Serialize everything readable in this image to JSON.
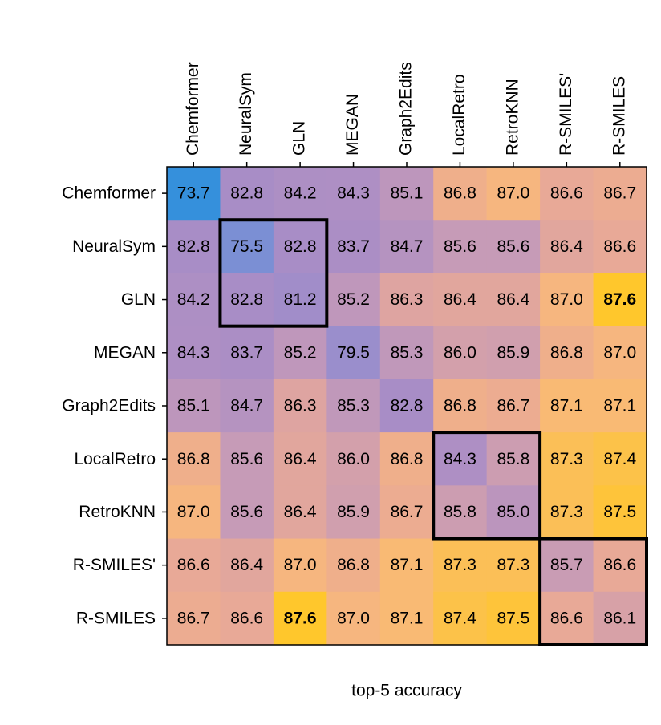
{
  "chart_data": {
    "type": "heatmap",
    "x_categories": [
      "Chemformer",
      "NeuralSym",
      "GLN",
      "MEGAN",
      "Graph2Edits",
      "LocalRetro",
      "RetroKNN",
      "R-SMILES'",
      "R-SMILES"
    ],
    "y_categories": [
      "Chemformer",
      "NeuralSym",
      "GLN",
      "MEGAN",
      "Graph2Edits",
      "LocalRetro",
      "RetroKNN",
      "R-SMILES'",
      "R-SMILES"
    ],
    "values": [
      [
        73.7,
        82.8,
        84.2,
        84.3,
        85.1,
        86.8,
        87.0,
        86.6,
        86.7
      ],
      [
        82.8,
        75.5,
        82.8,
        83.7,
        84.7,
        85.6,
        85.6,
        86.4,
        86.6
      ],
      [
        84.2,
        82.8,
        81.2,
        85.2,
        86.3,
        86.4,
        86.4,
        87.0,
        87.6
      ],
      [
        84.3,
        83.7,
        85.2,
        79.5,
        85.3,
        86.0,
        85.9,
        86.8,
        87.0
      ],
      [
        85.1,
        84.7,
        86.3,
        85.3,
        82.8,
        86.8,
        86.7,
        87.1,
        87.1
      ],
      [
        86.8,
        85.6,
        86.4,
        86.0,
        86.8,
        84.3,
        85.8,
        87.3,
        87.4
      ],
      [
        87.0,
        85.6,
        86.4,
        85.9,
        86.7,
        85.8,
        85.0,
        87.3,
        87.5
      ],
      [
        86.6,
        86.4,
        87.0,
        86.8,
        87.1,
        87.3,
        87.3,
        85.7,
        86.6
      ],
      [
        86.7,
        86.6,
        87.6,
        87.0,
        87.1,
        87.4,
        87.5,
        86.6,
        86.1
      ]
    ],
    "value_labels": [
      [
        "73.7",
        "82.8",
        "84.2",
        "84.3",
        "85.1",
        "86.8",
        "87.0",
        "86.6",
        "86.7"
      ],
      [
        "82.8",
        "75.5",
        "82.8",
        "83.7",
        "84.7",
        "85.6",
        "85.6",
        "86.4",
        "86.6"
      ],
      [
        "84.2",
        "82.8",
        "81.2",
        "85.2",
        "86.3",
        "86.4",
        "86.4",
        "87.0",
        "87.6"
      ],
      [
        "84.3",
        "83.7",
        "85.2",
        "79.5",
        "85.3",
        "86.0",
        "85.9",
        "86.8",
        "87.0"
      ],
      [
        "85.1",
        "84.7",
        "86.3",
        "85.3",
        "82.8",
        "86.8",
        "86.7",
        "87.1",
        "87.1"
      ],
      [
        "86.8",
        "85.6",
        "86.4",
        "86.0",
        "86.8",
        "84.3",
        "85.8",
        "87.3",
        "87.4"
      ],
      [
        "87.0",
        "85.6",
        "86.4",
        "85.9",
        "86.7",
        "85.8",
        "85.0",
        "87.3",
        "87.5"
      ],
      [
        "86.6",
        "86.4",
        "87.0",
        "86.8",
        "87.1",
        "87.3",
        "87.3",
        "85.7",
        "86.6"
      ],
      [
        "86.7",
        "86.6",
        "87.6",
        "87.0",
        "87.1",
        "87.4",
        "87.5",
        "86.6",
        "86.1"
      ]
    ],
    "xlabel": "top-5 accuracy",
    "colormap": {
      "colors": [
        "#3590dc",
        "#7b8fd4",
        "#9a8ecc",
        "#a88dc6",
        "#ad8fc4",
        "#c79bb6",
        "#e9a996",
        "#f8b87c",
        "#ffc72c"
      ],
      "stops": [
        0,
        0.13,
        0.42,
        0.65,
        0.76,
        0.86,
        0.93,
        0.96,
        1
      ]
    },
    "bold_max": true,
    "highlight_groups": [
      [
        1,
        2
      ],
      [
        5,
        6
      ],
      [
        7,
        8
      ]
    ]
  }
}
